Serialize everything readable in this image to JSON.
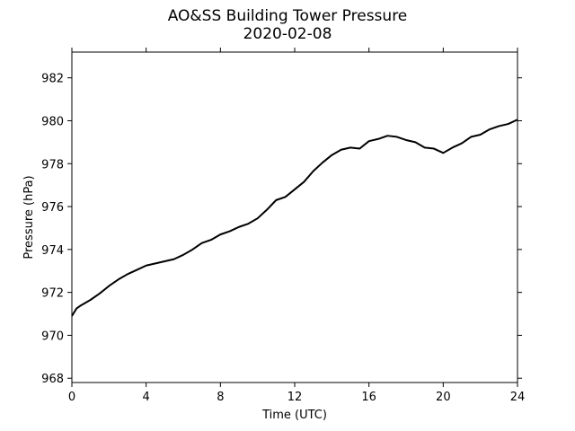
{
  "chart_data": {
    "type": "line",
    "title": "AO&SS Building Tower Pressure",
    "subtitle": "2020-02-08",
    "xlabel": "Time (UTC)",
    "ylabel": "Pressure (hPa)",
    "xlim": [
      0,
      24
    ],
    "ylim": [
      967.8,
      983.2
    ],
    "xticks": [
      0,
      4,
      8,
      12,
      16,
      20,
      24
    ],
    "yticks": [
      968,
      970,
      972,
      974,
      976,
      978,
      980,
      982
    ],
    "grid": false,
    "line_color": "#000000",
    "series": [
      {
        "x": [
          0,
          0.25,
          0.5,
          1,
          1.5,
          2,
          2.5,
          3,
          3.5,
          4,
          4.5,
          5,
          5.5,
          6,
          6.5,
          7,
          7.5,
          8,
          8.5,
          9,
          9.5,
          10,
          10.5,
          11,
          11.5,
          12,
          12.5,
          13,
          13.5,
          14,
          14.5,
          15,
          15.5,
          16,
          16.5,
          17,
          17.5,
          18,
          18.5,
          19,
          19.5,
          20,
          20.5,
          21,
          21.5,
          22,
          22.5,
          23,
          23.5,
          24
        ],
        "y": [
          970.9,
          971.25,
          971.4,
          971.65,
          971.95,
          972.3,
          972.6,
          972.85,
          973.05,
          973.25,
          973.35,
          973.45,
          973.55,
          973.75,
          974.0,
          974.3,
          974.45,
          974.7,
          974.85,
          975.05,
          975.2,
          975.45,
          975.85,
          976.3,
          976.45,
          976.8,
          977.15,
          977.65,
          978.05,
          978.4,
          978.65,
          978.75,
          978.7,
          979.05,
          979.15,
          979.3,
          979.25,
          979.1,
          979.0,
          978.75,
          978.7,
          978.5,
          978.75,
          978.95,
          979.25,
          979.35,
          979.6,
          979.75,
          979.85,
          980.05
        ]
      }
    ]
  }
}
